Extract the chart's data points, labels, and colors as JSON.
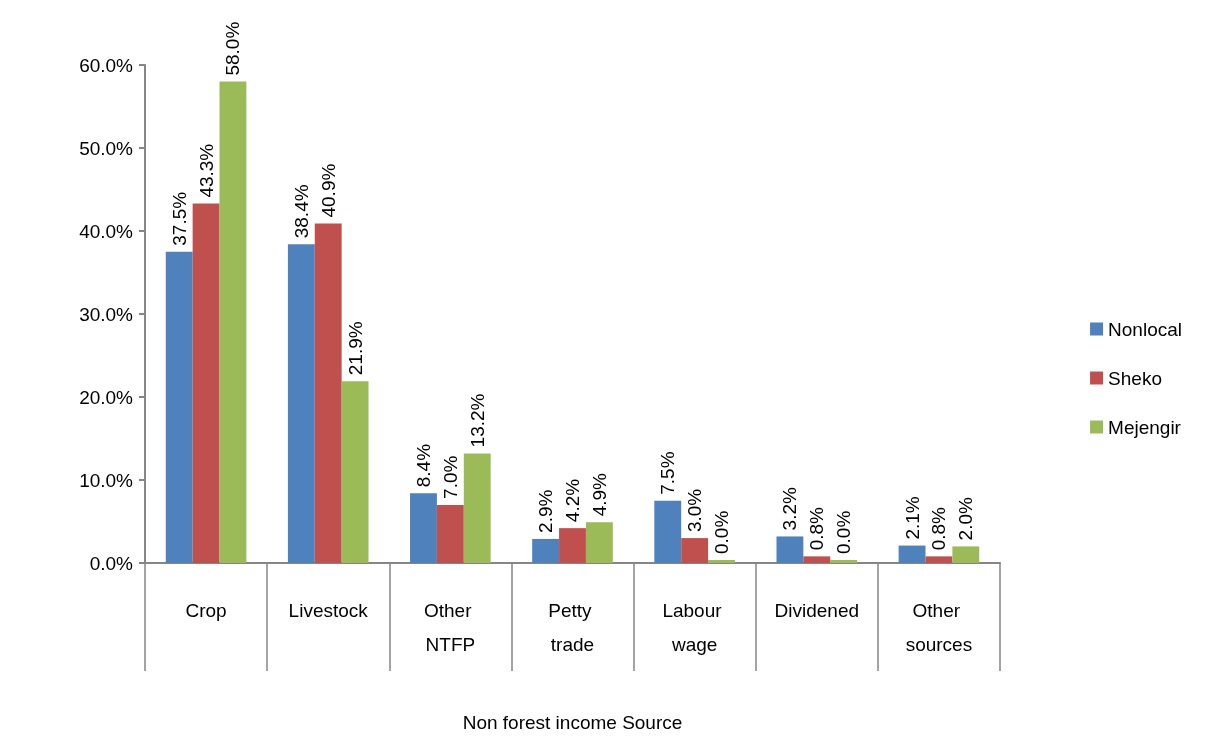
{
  "chart_data": {
    "type": "bar",
    "xlabel": "Non forest income Source",
    "categories": [
      "Crop",
      "Livestock",
      "Other NTFP",
      "Petty trade",
      "Labour wage",
      "Dividened",
      "Other sources"
    ],
    "series": [
      {
        "name": "Nonlocal",
        "color": "#4f81bd",
        "values": [
          37.5,
          38.4,
          8.4,
          2.9,
          7.5,
          3.2,
          2.1
        ],
        "value_labels": [
          "37.5%",
          "38.4%",
          "8.4%",
          "2.9%",
          "7.5%",
          "3.2%",
          "2.1%"
        ]
      },
      {
        "name": "Sheko",
        "color": "#c0504d",
        "values": [
          43.3,
          40.9,
          7.0,
          4.2,
          3.0,
          0.8,
          0.8
        ],
        "value_labels": [
          "43.3%",
          "40.9%",
          "7.0%",
          "4.2%",
          "3.0%",
          "0.8%",
          "0.8%"
        ]
      },
      {
        "name": "Mejengir",
        "color": "#9bbb59",
        "values": [
          58.0,
          21.9,
          13.2,
          4.9,
          0.0,
          0.0,
          2.0
        ],
        "value_labels": [
          "58.0%",
          "21.9%",
          "13.2%",
          "4.9%",
          "0.0%",
          "0.0%",
          "2.0%"
        ]
      }
    ],
    "ylim": [
      0,
      60
    ],
    "yticks": [
      {
        "value": 0,
        "label": "0.0%"
      },
      {
        "value": 10,
        "label": "10.0%"
      },
      {
        "value": 20,
        "label": "20.0%"
      },
      {
        "value": 30,
        "label": "30.0%"
      },
      {
        "value": 40,
        "label": "40.0%"
      },
      {
        "value": 50,
        "label": "50.0%"
      },
      {
        "value": 60,
        "label": "60.0%"
      }
    ],
    "grid": false,
    "legend": "right"
  }
}
